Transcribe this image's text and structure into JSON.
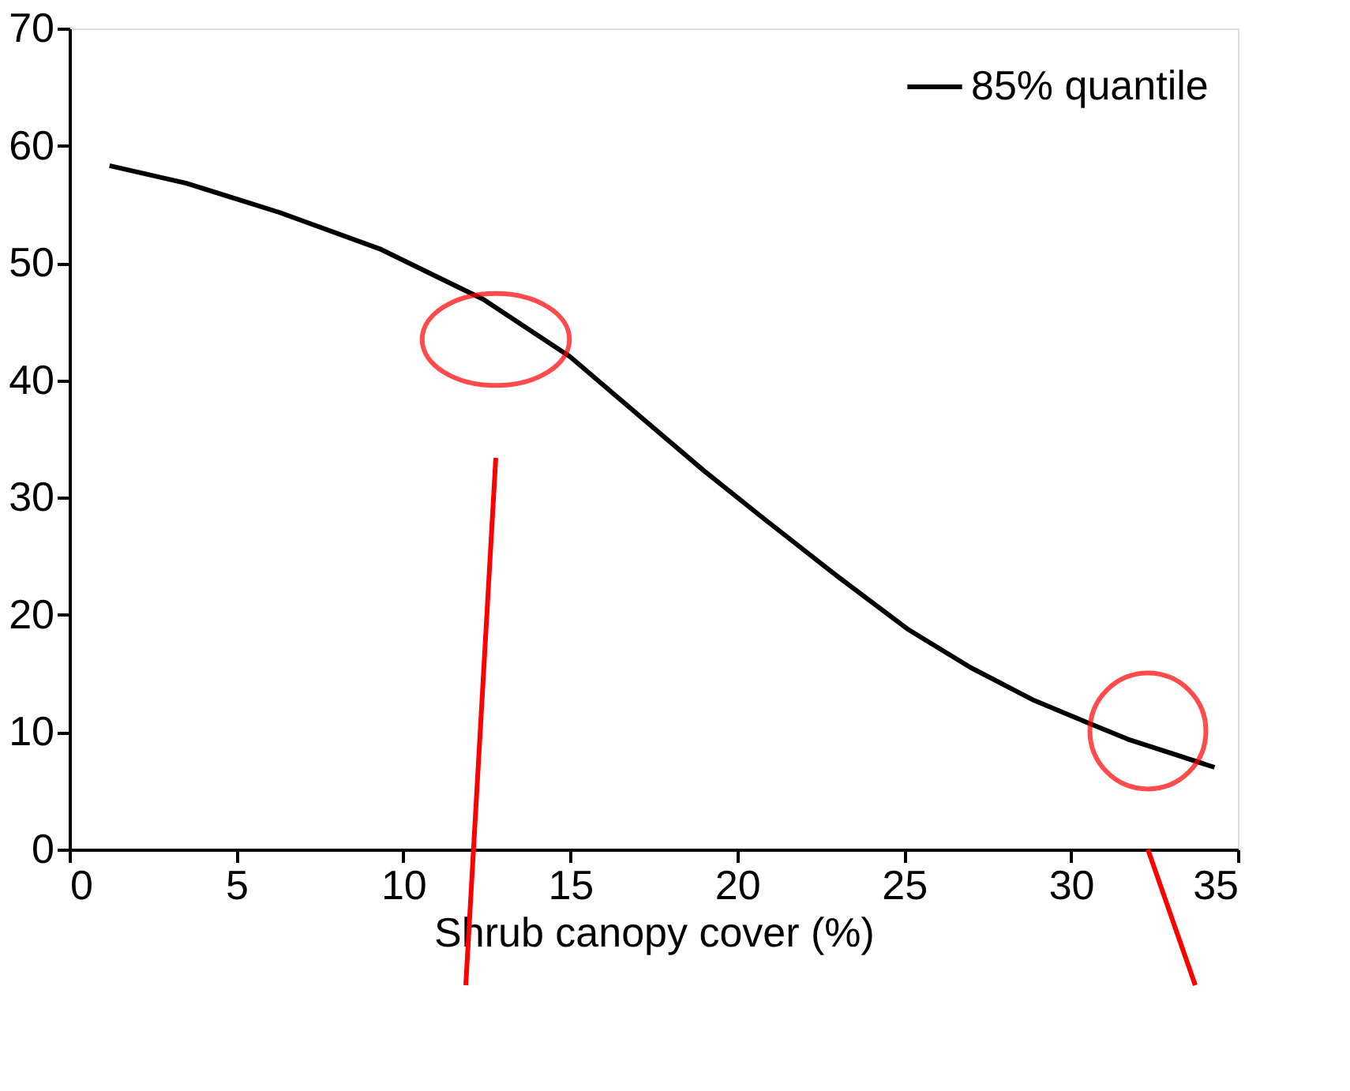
{
  "chart_data": {
    "type": "line",
    "xlabel": "Shrub canopy cover (%)",
    "x": [
      1.2,
      3.5,
      6.3,
      9.3,
      12.4,
      15.0,
      17.1,
      19.0,
      20.8,
      23.0,
      25.1,
      27.0,
      28.9,
      30.5,
      31.7,
      33.0,
      34.3
    ],
    "series": [
      {
        "name": "85% quantile",
        "color": "#000000",
        "values": [
          58.3,
          56.8,
          54.3,
          51.2,
          46.9,
          42.0,
          36.9,
          32.3,
          28.2,
          23.3,
          18.8,
          15.5,
          12.7,
          10.8,
          9.4,
          8.2,
          7.0
        ]
      }
    ],
    "xlim": [
      0,
      35
    ],
    "xticks": [
      0,
      5,
      10,
      15,
      20,
      25,
      30,
      35
    ],
    "ylim": [
      0,
      70
    ],
    "yticks": [
      0,
      10,
      20,
      30,
      40,
      50,
      60,
      70
    ],
    "grid": false,
    "legend": "top right",
    "marker": "none",
    "line_style": "solid"
  }
}
